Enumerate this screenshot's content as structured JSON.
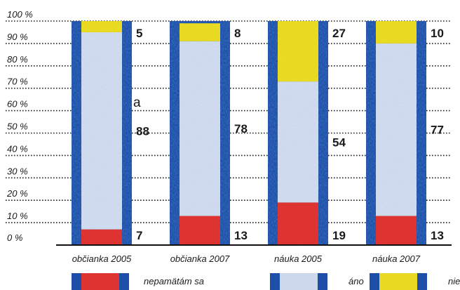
{
  "chart_data": {
    "type": "bar",
    "stacked": true,
    "orientation": "vertical",
    "categories": [
      "občianka 2005",
      "občianka 2007",
      "náuka 2005",
      "náuka 2007"
    ],
    "series": [
      {
        "name": "nepamätám sa",
        "values": [
          7,
          13,
          19,
          13
        ],
        "color": "#e8322a",
        "legend_key": "red"
      },
      {
        "name": "áno",
        "values": [
          88,
          78,
          54,
          77
        ],
        "color": "#f4f6fb",
        "legend_key": "white"
      },
      {
        "name": "nie",
        "values": [
          5,
          8,
          27,
          10
        ],
        "color": "#f3e21a",
        "legend_key": "yellow"
      }
    ],
    "ylim": [
      0,
      100
    ],
    "yticks": [
      0,
      10,
      20,
      30,
      40,
      50,
      60,
      70,
      80,
      90,
      100
    ],
    "ytick_labels": [
      "0 %",
      "10 %",
      "20 %",
      "30 %",
      "40 %",
      "50 %",
      "60 %",
      "70 %",
      "80 %",
      "90 %",
      "100 %"
    ],
    "grid": "dotted horizontal",
    "legend_position": "bottom",
    "annotation": "a",
    "frame_color": "#1d4fa8",
    "bar_texture": "blue-mottled"
  }
}
